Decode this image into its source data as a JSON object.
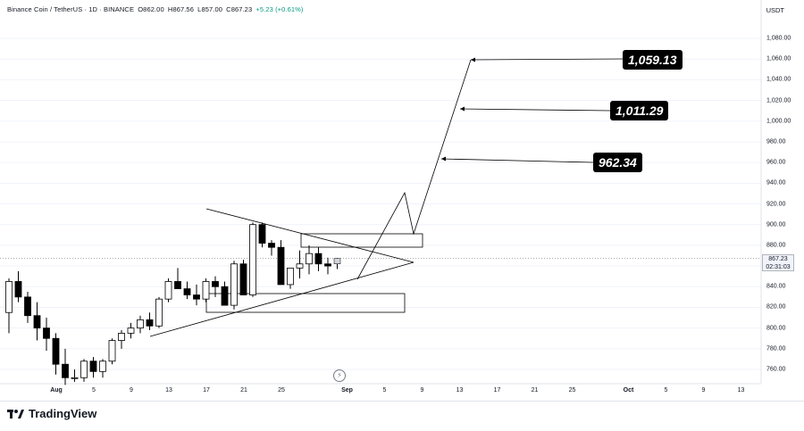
{
  "legend": {
    "symbol": "Binance Coin / TetherUS · 1D · BINANCE",
    "open": "O862.00",
    "high": "H867.56",
    "low": "L857.00",
    "close": "C867.23",
    "change": "+5.23 (+0.61%)"
  },
  "quote_currency": "USDT",
  "current_price": "867.23",
  "countdown": "02:31:03",
  "targets": [
    "1,059.13",
    "1,011.29",
    "962.34"
  ],
  "brand": "TradingView",
  "colors": {
    "up": "#ffffff",
    "down": "#000000",
    "line": "#000000",
    "grid": "#f0f3fa"
  },
  "chart_data": {
    "type": "candlestick",
    "title": "Binance Coin / TetherUS · 1D · BINANCE",
    "ylabel": "USDT",
    "ylim": [
      740,
      1100
    ],
    "y_ticks": [
      "1,080.00",
      "1,060.00",
      "1,040.00",
      "1,020.00",
      "1,000.00",
      "980.00",
      "960.00",
      "940.00",
      "920.00",
      "900.00",
      "880.00",
      "860.00",
      "840.00",
      "820.00",
      "800.00",
      "780.00",
      "760.00"
    ],
    "x_ticks": [
      "Aug",
      "5",
      "9",
      "13",
      "17",
      "21",
      "25",
      "Sep",
      "5",
      "9",
      "13",
      "17",
      "21",
      "25",
      "Oct",
      "5",
      "9",
      "13"
    ],
    "candles": [
      [
        815,
        848,
        795,
        845
      ],
      [
        845,
        855,
        825,
        830
      ],
      [
        830,
        835,
        805,
        812
      ],
      [
        812,
        825,
        788,
        800
      ],
      [
        800,
        810,
        778,
        790
      ],
      [
        790,
        795,
        755,
        765
      ],
      [
        765,
        780,
        745,
        752
      ],
      [
        752,
        760,
        748,
        752
      ],
      [
        752,
        770,
        748,
        768
      ],
      [
        768,
        772,
        752,
        758
      ],
      [
        758,
        770,
        752,
        768
      ],
      [
        768,
        790,
        765,
        788
      ],
      [
        788,
        798,
        780,
        795
      ],
      [
        795,
        805,
        790,
        800
      ],
      [
        800,
        812,
        795,
        808
      ],
      [
        808,
        815,
        798,
        802
      ],
      [
        802,
        830,
        800,
        828
      ],
      [
        828,
        848,
        825,
        845
      ],
      [
        845,
        858,
        838,
        838
      ],
      [
        838,
        845,
        828,
        832
      ],
      [
        832,
        842,
        822,
        828
      ],
      [
        828,
        848,
        825,
        845
      ],
      [
        845,
        850,
        830,
        840
      ],
      [
        840,
        845,
        822,
        822
      ],
      [
        822,
        865,
        818,
        862
      ],
      [
        862,
        866,
        835,
        832
      ],
      [
        832,
        902,
        830,
        900
      ],
      [
        900,
        902,
        878,
        882
      ],
      [
        882,
        885,
        870,
        878
      ],
      [
        878,
        885,
        845,
        842
      ],
      [
        842,
        858,
        838,
        858
      ],
      [
        858,
        875,
        848,
        862
      ],
      [
        862,
        880,
        852,
        872
      ],
      [
        872,
        878,
        855,
        862
      ],
      [
        862,
        868,
        852,
        860
      ],
      [
        862,
        867.56,
        857,
        867.23
      ]
    ],
    "levels": [
      1059.13,
      1011.29,
      962.34
    ],
    "current": 867.23
  }
}
